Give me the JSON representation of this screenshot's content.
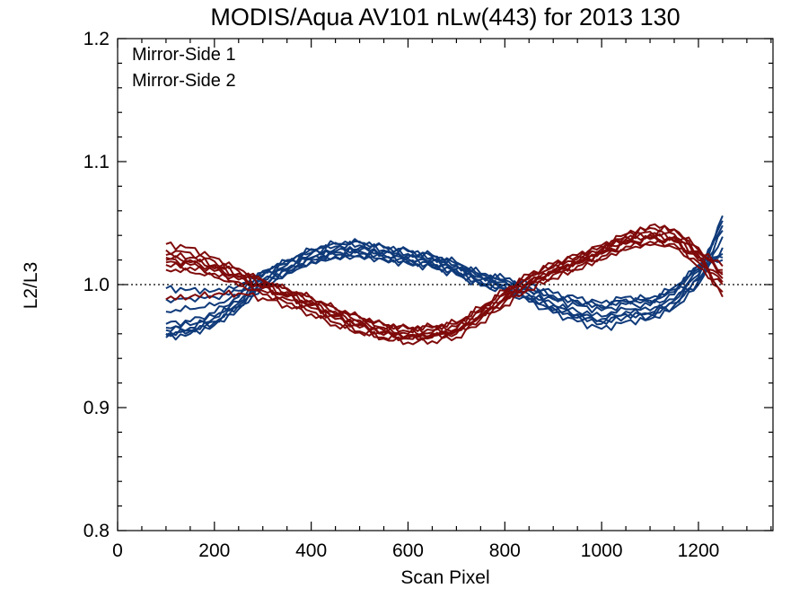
{
  "chart_data": {
    "type": "line",
    "title": "MODIS/Aqua AV101 nLw(443) for 2013 130",
    "xlabel": "Scan Pixel",
    "ylabel": "L2/L3",
    "xlim": [
      0,
      1354
    ],
    "ylim": [
      0.8,
      1.2
    ],
    "xticks": [
      "0",
      "200",
      "400",
      "600",
      "800",
      "1000",
      "1200"
    ],
    "yticks": [
      "0.8",
      "0.9",
      "1.0",
      "1.1",
      "1.2"
    ],
    "reference_line": {
      "y": 1.0,
      "style": "dotted"
    },
    "grid": false,
    "legend_position": "top-left",
    "colors": {
      "mirror_side_1": "#0f3a7a",
      "mirror_side_2": "#7f0a0a"
    },
    "x": [
      100,
      150,
      200,
      250,
      300,
      350,
      400,
      450,
      500,
      550,
      600,
      650,
      700,
      750,
      800,
      850,
      900,
      950,
      1000,
      1050,
      1100,
      1150,
      1200,
      1250
    ],
    "series": [
      {
        "name": "Mirror-Side 1",
        "group": 1,
        "values": [
          0.965,
          0.967,
          0.974,
          0.986,
          1.004,
          1.013,
          1.022,
          1.026,
          1.027,
          1.024,
          1.021,
          1.018,
          1.012,
          1.003,
          0.999,
          0.992,
          0.984,
          0.978,
          0.974,
          0.98,
          0.979,
          0.988,
          1.008,
          1.048
        ]
      },
      {
        "group": 1,
        "values": [
          0.96,
          0.963,
          0.97,
          0.982,
          1.0,
          1.011,
          1.02,
          1.024,
          1.025,
          1.022,
          1.019,
          1.016,
          1.01,
          1.001,
          0.997,
          0.989,
          0.981,
          0.975,
          0.97,
          0.976,
          0.976,
          0.985,
          1.004,
          1.044
        ]
      },
      {
        "group": 1,
        "values": [
          0.957,
          0.96,
          0.967,
          0.98,
          0.998,
          1.009,
          1.018,
          1.022,
          1.023,
          1.02,
          1.017,
          1.014,
          1.008,
          0.999,
          0.995,
          0.986,
          0.977,
          0.97,
          0.964,
          0.97,
          0.972,
          0.981,
          1.0,
          1.039
        ]
      },
      {
        "group": 1,
        "values": [
          0.968,
          0.97,
          0.977,
          0.99,
          1.007,
          1.016,
          1.025,
          1.029,
          1.03,
          1.027,
          1.024,
          1.021,
          1.015,
          1.006,
          1.002,
          0.995,
          0.988,
          0.983,
          0.979,
          0.984,
          0.983,
          0.992,
          1.011,
          1.052
        ]
      },
      {
        "group": 1,
        "values": [
          0.963,
          0.965,
          0.973,
          0.985,
          1.003,
          1.012,
          1.021,
          1.027,
          1.028,
          1.025,
          1.022,
          1.019,
          1.013,
          1.004,
          1.0,
          0.991,
          0.983,
          0.976,
          0.972,
          0.978,
          0.977,
          0.987,
          1.006,
          1.056
        ]
      },
      {
        "group": 1,
        "values": [
          0.959,
          0.962,
          0.969,
          0.983,
          1.001,
          1.01,
          1.019,
          1.023,
          1.024,
          1.021,
          1.018,
          1.015,
          1.009,
          1.0,
          0.996,
          0.988,
          0.979,
          0.973,
          0.968,
          0.974,
          0.974,
          0.983,
          1.003,
          1.03
        ]
      },
      {
        "group": 1,
        "values": [
          0.978,
          0.98,
          0.983,
          0.991,
          1.008,
          1.017,
          1.026,
          1.031,
          1.032,
          1.028,
          1.025,
          1.022,
          1.016,
          1.007,
          1.003,
          0.996,
          0.989,
          0.985,
          0.981,
          0.986,
          0.985,
          0.994,
          1.013,
          1.025
        ]
      },
      {
        "group": 1,
        "values": [
          0.988,
          0.989,
          0.99,
          0.995,
          1.01,
          1.019,
          1.028,
          1.033,
          1.034,
          1.03,
          1.027,
          1.023,
          1.017,
          1.008,
          1.004,
          0.998,
          0.991,
          0.987,
          0.983,
          0.988,
          0.987,
          0.996,
          1.015,
          1.022
        ]
      },
      {
        "group": 1,
        "values": [
          0.997,
          0.996,
          0.995,
          0.999,
          1.011,
          1.02,
          1.029,
          1.034,
          1.035,
          1.031,
          1.028,
          1.024,
          1.018,
          1.009,
          1.005,
          1.0,
          0.993,
          0.989,
          0.985,
          0.99,
          0.989,
          0.998,
          1.016,
          1.02
        ]
      },
      {
        "name": "Mirror-Side 2",
        "group": 2,
        "values": [
          1.02,
          1.018,
          1.013,
          1.006,
          0.998,
          0.991,
          0.984,
          0.975,
          0.968,
          0.962,
          0.959,
          0.96,
          0.963,
          0.975,
          0.989,
          1.002,
          1.011,
          1.018,
          1.026,
          1.034,
          1.038,
          1.036,
          1.022,
          1.005
        ]
      },
      {
        "group": 2,
        "values": [
          1.016,
          1.014,
          1.009,
          1.002,
          0.995,
          0.988,
          0.981,
          0.972,
          0.965,
          0.959,
          0.956,
          0.957,
          0.96,
          0.972,
          0.986,
          0.999,
          1.008,
          1.015,
          1.023,
          1.031,
          1.035,
          1.033,
          1.018,
          1.0
        ]
      },
      {
        "group": 2,
        "values": [
          1.024,
          1.022,
          1.016,
          1.009,
          1.001,
          0.994,
          0.987,
          0.978,
          0.971,
          0.965,
          0.962,
          0.963,
          0.966,
          0.978,
          0.992,
          1.005,
          1.014,
          1.021,
          1.029,
          1.037,
          1.041,
          1.039,
          1.026,
          1.01
        ]
      },
      {
        "group": 2,
        "values": [
          1.012,
          1.01,
          1.006,
          0.999,
          0.992,
          0.985,
          0.978,
          0.969,
          0.962,
          0.956,
          0.953,
          0.954,
          0.957,
          0.969,
          0.983,
          0.996,
          1.005,
          1.012,
          1.02,
          1.028,
          1.032,
          1.03,
          1.014,
          0.994
        ]
      },
      {
        "group": 2,
        "values": [
          1.028,
          1.026,
          1.019,
          1.011,
          1.003,
          0.996,
          0.989,
          0.98,
          0.973,
          0.967,
          0.964,
          0.965,
          0.968,
          0.98,
          0.994,
          1.007,
          1.016,
          1.023,
          1.031,
          1.039,
          1.043,
          1.041,
          1.028,
          1.015
        ]
      },
      {
        "group": 2,
        "values": [
          1.033,
          1.03,
          1.022,
          1.013,
          1.004,
          0.997,
          0.99,
          0.981,
          0.974,
          0.968,
          0.965,
          0.966,
          0.969,
          0.981,
          0.995,
          1.008,
          1.017,
          1.024,
          1.032,
          1.041,
          1.046,
          1.045,
          1.03,
          1.008
        ]
      },
      {
        "group": 2,
        "values": [
          1.018,
          1.016,
          1.011,
          1.004,
          0.997,
          0.99,
          0.983,
          0.974,
          0.967,
          0.961,
          0.958,
          0.959,
          0.962,
          0.974,
          0.988,
          1.001,
          1.01,
          1.017,
          1.025,
          1.033,
          1.037,
          1.035,
          1.02,
          1.002
        ]
      },
      {
        "group": 2,
        "values": [
          1.022,
          1.02,
          1.015,
          1.007,
          0.999,
          0.992,
          0.985,
          0.976,
          0.969,
          0.963,
          0.96,
          0.961,
          0.964,
          0.976,
          0.99,
          1.003,
          1.012,
          1.019,
          1.027,
          1.036,
          1.04,
          1.038,
          1.024,
          0.99
        ]
      },
      {
        "group": 2,
        "values": [
          0.988,
          0.99,
          0.992,
          0.993,
          0.989,
          0.983,
          0.976,
          0.967,
          0.961,
          0.957,
          0.956,
          0.958,
          0.962,
          0.974,
          0.988,
          1.001,
          1.01,
          1.018,
          1.027,
          1.04,
          1.048,
          1.045,
          1.027,
          1.012
        ]
      }
    ]
  }
}
